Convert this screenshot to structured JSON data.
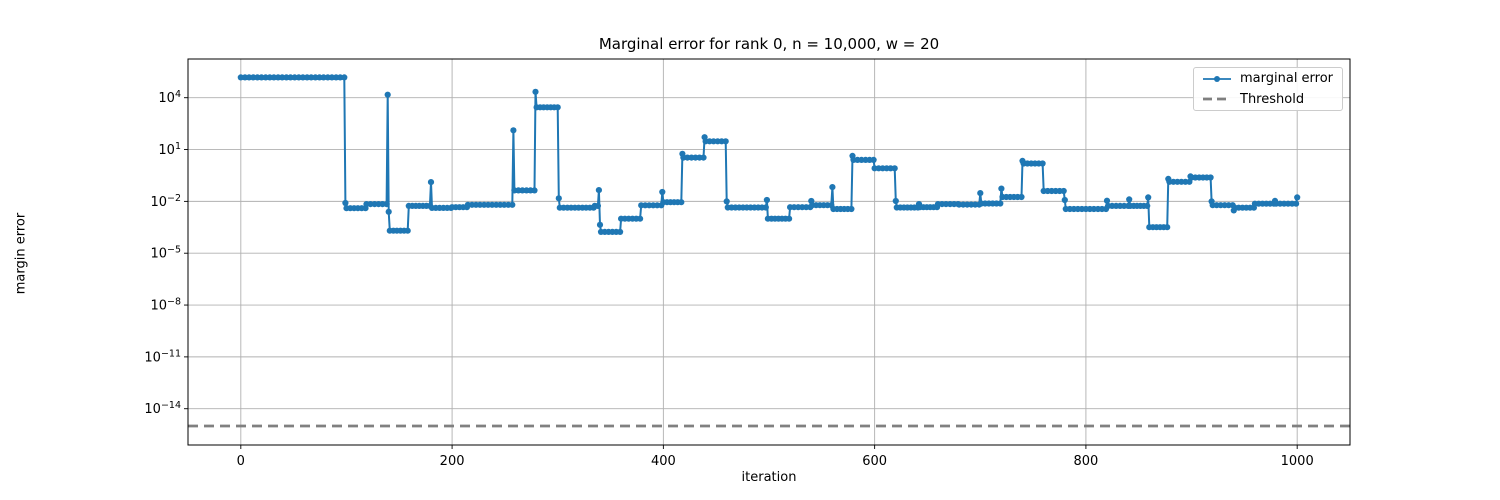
{
  "chart_data": {
    "type": "line",
    "title": "Marginal error for rank 0, n = 10,000, w = 20",
    "xlabel": "iteration",
    "ylabel": "margin error",
    "x_ticks": [
      0,
      200,
      400,
      600,
      800,
      1000
    ],
    "y_tick_base": "10",
    "y_tick_exponents": [
      4,
      1,
      -2,
      -5,
      -8,
      -11,
      -14
    ],
    "xlim": [
      -50,
      1050
    ],
    "ylim_log10": [
      -16.1,
      6.24
    ],
    "grid": true,
    "legend_position": "upper right",
    "legend": [
      {
        "label": "marginal error",
        "style": "line-dot",
        "color": "#1f77b4"
      },
      {
        "label": "Threshold",
        "style": "dashed",
        "color": "#7f7f7f"
      }
    ],
    "threshold_value": 1e-15,
    "series": [
      {
        "name": "marginal error",
        "color": "#1f77b4",
        "points": [
          [
            0,
            150000.0
          ],
          [
            98,
            150000.0
          ],
          [
            99,
            0.008
          ],
          [
            100,
            0.004
          ],
          [
            118,
            0.004
          ],
          [
            119,
            0.007
          ],
          [
            138,
            0.007
          ],
          [
            139,
            15000.0
          ],
          [
            140,
            0.0025
          ],
          [
            141,
            0.0002
          ],
          [
            158,
            0.0002
          ],
          [
            159,
            0.0055
          ],
          [
            179,
            0.0055
          ],
          [
            180,
            0.13
          ],
          [
            181,
            0.0042
          ],
          [
            199,
            0.0042
          ],
          [
            200,
            0.0046
          ],
          [
            214,
            0.0046
          ],
          [
            215,
            0.0063
          ],
          [
            257,
            0.0063
          ],
          [
            258,
            130.0
          ],
          [
            259,
            0.043
          ],
          [
            278,
            0.043
          ],
          [
            279,
            22000.0
          ],
          [
            280,
            2800.0
          ],
          [
            300,
            2800.0
          ],
          [
            301,
            0.015
          ],
          [
            302,
            0.0043
          ],
          [
            334,
            0.0043
          ],
          [
            335,
            0.0055
          ],
          [
            338,
            0.0055
          ],
          [
            339,
            0.045
          ],
          [
            340,
            0.00044
          ],
          [
            341,
            0.00017
          ],
          [
            359,
            0.00017
          ],
          [
            360,
            0.001
          ],
          [
            378,
            0.001
          ],
          [
            379,
            0.0059
          ],
          [
            398,
            0.0059
          ],
          [
            399,
            0.035
          ],
          [
            400,
            0.009
          ],
          [
            417,
            0.009
          ],
          [
            418,
            5.7
          ],
          [
            419,
            3.4
          ],
          [
            438,
            3.4
          ],
          [
            439,
            52
          ],
          [
            440,
            30
          ],
          [
            459,
            30
          ],
          [
            460,
            0.01
          ],
          [
            461,
            0.0044
          ],
          [
            497,
            0.0044
          ],
          [
            498,
            0.012
          ],
          [
            499,
            0.001
          ],
          [
            519,
            0.001
          ],
          [
            520,
            0.0046
          ],
          [
            539,
            0.0046
          ],
          [
            540,
            0.0105
          ],
          [
            541,
            0.006
          ],
          [
            559,
            0.006
          ],
          [
            560,
            0.067
          ],
          [
            561,
            0.0036
          ],
          [
            578,
            0.0036
          ],
          [
            579,
            4.3
          ],
          [
            580,
            2.5
          ],
          [
            599,
            2.5
          ],
          [
            600,
            0.82
          ],
          [
            619,
            0.82
          ],
          [
            620,
            0.0105
          ],
          [
            621,
            0.0044
          ],
          [
            641,
            0.0044
          ],
          [
            642,
            0.007
          ],
          [
            643,
            0.0046
          ],
          [
            659,
            0.0046
          ],
          [
            660,
            0.007
          ],
          [
            679,
            0.007
          ],
          [
            680,
            0.0065
          ],
          [
            699,
            0.0065
          ],
          [
            700,
            0.03
          ],
          [
            701,
            0.0075
          ],
          [
            719,
            0.0075
          ],
          [
            720,
            0.055
          ],
          [
            721,
            0.018
          ],
          [
            739,
            0.018
          ],
          [
            740,
            2.2
          ],
          [
            741,
            1.55
          ],
          [
            759,
            1.55
          ],
          [
            760,
            0.04
          ],
          [
            779,
            0.04
          ],
          [
            780,
            0.012
          ],
          [
            781,
            0.0036
          ],
          [
            819,
            0.0036
          ],
          [
            820,
            0.011
          ],
          [
            821,
            0.0055
          ],
          [
            840,
            0.0055
          ],
          [
            841,
            0.013
          ],
          [
            842,
            0.0055
          ],
          [
            858,
            0.0055
          ],
          [
            859,
            0.017
          ],
          [
            860,
            0.00032
          ],
          [
            877,
            0.00032
          ],
          [
            878,
            0.2
          ],
          [
            879,
            0.135
          ],
          [
            898,
            0.135
          ],
          [
            899,
            0.28
          ],
          [
            900,
            0.24
          ],
          [
            918,
            0.24
          ],
          [
            919,
            0.01
          ],
          [
            920,
            0.006
          ],
          [
            939,
            0.006
          ],
          [
            940,
            0.003
          ],
          [
            941,
            0.0043
          ],
          [
            959,
            0.0043
          ],
          [
            960,
            0.0073
          ],
          [
            978,
            0.0073
          ],
          [
            979,
            0.0107
          ],
          [
            980,
            0.0073
          ],
          [
            999,
            0.0073
          ],
          [
            1000,
            0.017
          ]
        ]
      }
    ]
  },
  "colors": {
    "line": "#1f77b4",
    "threshold": "#808080",
    "grid": "#b0b0b0",
    "spine": "#000000",
    "text": "#000000",
    "legend_border": "#cccccc"
  }
}
